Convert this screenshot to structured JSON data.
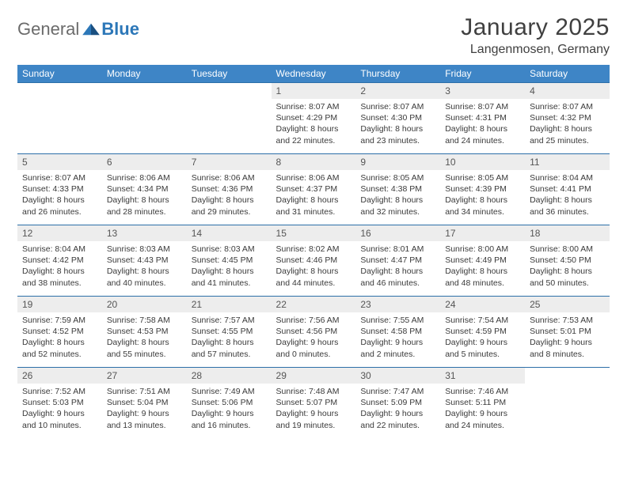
{
  "brand": {
    "part1": "General",
    "part2": "Blue"
  },
  "title": "January 2025",
  "location": "Langenmosen, Germany",
  "colors": {
    "header_bg": "#3e85c6",
    "header_text": "#ffffff",
    "rule": "#2c6fa8",
    "daynum_bg": "#ededed",
    "brand_gray": "#6b6b6b",
    "brand_blue": "#2c77b8",
    "page_bg": "#ffffff",
    "body_text": "#333333"
  },
  "weekdays": [
    "Sunday",
    "Monday",
    "Tuesday",
    "Wednesday",
    "Thursday",
    "Friday",
    "Saturday"
  ],
  "weeks": [
    [
      {
        "n": "",
        "sr": "",
        "ss": "",
        "dl": ""
      },
      {
        "n": "",
        "sr": "",
        "ss": "",
        "dl": ""
      },
      {
        "n": "",
        "sr": "",
        "ss": "",
        "dl": ""
      },
      {
        "n": "1",
        "sr": "Sunrise: 8:07 AM",
        "ss": "Sunset: 4:29 PM",
        "dl": "Daylight: 8 hours and 22 minutes."
      },
      {
        "n": "2",
        "sr": "Sunrise: 8:07 AM",
        "ss": "Sunset: 4:30 PM",
        "dl": "Daylight: 8 hours and 23 minutes."
      },
      {
        "n": "3",
        "sr": "Sunrise: 8:07 AM",
        "ss": "Sunset: 4:31 PM",
        "dl": "Daylight: 8 hours and 24 minutes."
      },
      {
        "n": "4",
        "sr": "Sunrise: 8:07 AM",
        "ss": "Sunset: 4:32 PM",
        "dl": "Daylight: 8 hours and 25 minutes."
      }
    ],
    [
      {
        "n": "5",
        "sr": "Sunrise: 8:07 AM",
        "ss": "Sunset: 4:33 PM",
        "dl": "Daylight: 8 hours and 26 minutes."
      },
      {
        "n": "6",
        "sr": "Sunrise: 8:06 AM",
        "ss": "Sunset: 4:34 PM",
        "dl": "Daylight: 8 hours and 28 minutes."
      },
      {
        "n": "7",
        "sr": "Sunrise: 8:06 AM",
        "ss": "Sunset: 4:36 PM",
        "dl": "Daylight: 8 hours and 29 minutes."
      },
      {
        "n": "8",
        "sr": "Sunrise: 8:06 AM",
        "ss": "Sunset: 4:37 PM",
        "dl": "Daylight: 8 hours and 31 minutes."
      },
      {
        "n": "9",
        "sr": "Sunrise: 8:05 AM",
        "ss": "Sunset: 4:38 PM",
        "dl": "Daylight: 8 hours and 32 minutes."
      },
      {
        "n": "10",
        "sr": "Sunrise: 8:05 AM",
        "ss": "Sunset: 4:39 PM",
        "dl": "Daylight: 8 hours and 34 minutes."
      },
      {
        "n": "11",
        "sr": "Sunrise: 8:04 AM",
        "ss": "Sunset: 4:41 PM",
        "dl": "Daylight: 8 hours and 36 minutes."
      }
    ],
    [
      {
        "n": "12",
        "sr": "Sunrise: 8:04 AM",
        "ss": "Sunset: 4:42 PM",
        "dl": "Daylight: 8 hours and 38 minutes."
      },
      {
        "n": "13",
        "sr": "Sunrise: 8:03 AM",
        "ss": "Sunset: 4:43 PM",
        "dl": "Daylight: 8 hours and 40 minutes."
      },
      {
        "n": "14",
        "sr": "Sunrise: 8:03 AM",
        "ss": "Sunset: 4:45 PM",
        "dl": "Daylight: 8 hours and 41 minutes."
      },
      {
        "n": "15",
        "sr": "Sunrise: 8:02 AM",
        "ss": "Sunset: 4:46 PM",
        "dl": "Daylight: 8 hours and 44 minutes."
      },
      {
        "n": "16",
        "sr": "Sunrise: 8:01 AM",
        "ss": "Sunset: 4:47 PM",
        "dl": "Daylight: 8 hours and 46 minutes."
      },
      {
        "n": "17",
        "sr": "Sunrise: 8:00 AM",
        "ss": "Sunset: 4:49 PM",
        "dl": "Daylight: 8 hours and 48 minutes."
      },
      {
        "n": "18",
        "sr": "Sunrise: 8:00 AM",
        "ss": "Sunset: 4:50 PM",
        "dl": "Daylight: 8 hours and 50 minutes."
      }
    ],
    [
      {
        "n": "19",
        "sr": "Sunrise: 7:59 AM",
        "ss": "Sunset: 4:52 PM",
        "dl": "Daylight: 8 hours and 52 minutes."
      },
      {
        "n": "20",
        "sr": "Sunrise: 7:58 AM",
        "ss": "Sunset: 4:53 PM",
        "dl": "Daylight: 8 hours and 55 minutes."
      },
      {
        "n": "21",
        "sr": "Sunrise: 7:57 AM",
        "ss": "Sunset: 4:55 PM",
        "dl": "Daylight: 8 hours and 57 minutes."
      },
      {
        "n": "22",
        "sr": "Sunrise: 7:56 AM",
        "ss": "Sunset: 4:56 PM",
        "dl": "Daylight: 9 hours and 0 minutes."
      },
      {
        "n": "23",
        "sr": "Sunrise: 7:55 AM",
        "ss": "Sunset: 4:58 PM",
        "dl": "Daylight: 9 hours and 2 minutes."
      },
      {
        "n": "24",
        "sr": "Sunrise: 7:54 AM",
        "ss": "Sunset: 4:59 PM",
        "dl": "Daylight: 9 hours and 5 minutes."
      },
      {
        "n": "25",
        "sr": "Sunrise: 7:53 AM",
        "ss": "Sunset: 5:01 PM",
        "dl": "Daylight: 9 hours and 8 minutes."
      }
    ],
    [
      {
        "n": "26",
        "sr": "Sunrise: 7:52 AM",
        "ss": "Sunset: 5:03 PM",
        "dl": "Daylight: 9 hours and 10 minutes."
      },
      {
        "n": "27",
        "sr": "Sunrise: 7:51 AM",
        "ss": "Sunset: 5:04 PM",
        "dl": "Daylight: 9 hours and 13 minutes."
      },
      {
        "n": "28",
        "sr": "Sunrise: 7:49 AM",
        "ss": "Sunset: 5:06 PM",
        "dl": "Daylight: 9 hours and 16 minutes."
      },
      {
        "n": "29",
        "sr": "Sunrise: 7:48 AM",
        "ss": "Sunset: 5:07 PM",
        "dl": "Daylight: 9 hours and 19 minutes."
      },
      {
        "n": "30",
        "sr": "Sunrise: 7:47 AM",
        "ss": "Sunset: 5:09 PM",
        "dl": "Daylight: 9 hours and 22 minutes."
      },
      {
        "n": "31",
        "sr": "Sunrise: 7:46 AM",
        "ss": "Sunset: 5:11 PM",
        "dl": "Daylight: 9 hours and 24 minutes."
      },
      {
        "n": "",
        "sr": "",
        "ss": "",
        "dl": ""
      }
    ]
  ]
}
